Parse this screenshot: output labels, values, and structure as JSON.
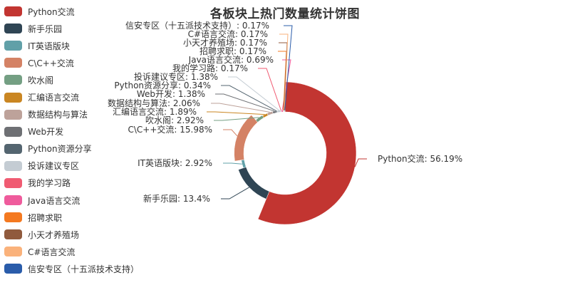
{
  "chart_data": {
    "type": "pie",
    "subtype": "donut-rose",
    "title": "各板块上热门数量统计饼图",
    "legend_position": "left",
    "categories": [
      "Python交流",
      "新手乐园",
      "IT英语版块",
      "C\\C++交流",
      "吹水阁",
      "汇编语言交流",
      "数据结构与算法",
      "Web开发",
      "Python资源分享",
      "投诉建议专区",
      "我的学习路",
      "Java语言交流",
      "招聘求职",
      "小天才养殖场",
      "C#语言交流",
      "信安专区（十五派技术支持）"
    ],
    "values": [
      56.19,
      13.4,
      2.92,
      15.98,
      2.92,
      1.89,
      2.06,
      1.38,
      0.34,
      1.38,
      0.17,
      0.69,
      0.17,
      0.17,
      0.17,
      0.17
    ],
    "unit": "%",
    "colors": [
      "#c23531",
      "#2f4554",
      "#61a0a8",
      "#d48265",
      "#749f83",
      "#ca8622",
      "#bda29a",
      "#6e7074",
      "#546570",
      "#c4ccd3",
      "#f05b72",
      "#ef5b9c",
      "#f47920",
      "#905a3d",
      "#fab27b",
      "#2a5caa"
    ],
    "labels": [
      "Python交流: 56.19%",
      "新手乐园: 13.4%",
      "IT英语版块: 2.92%",
      "C\\C++交流: 15.98%",
      "吹水阁: 2.92%",
      "汇编语言交流: 1.89%",
      "数据结构与算法: 2.06%",
      "Web开发: 1.38%",
      "Python资源分享: 0.34%",
      "投诉建议专区: 1.38%",
      "我的学习路: 0.17%",
      "Java语言交流: 0.69%",
      "招聘求职: 0.17%",
      "小天才养殖场: 0.17%",
      "C#语言交流: 0.17%",
      "信安专区（十五派技术支持）: 0.17%"
    ]
  },
  "header": {
    "title": "各板块上热门数量统计饼图"
  }
}
